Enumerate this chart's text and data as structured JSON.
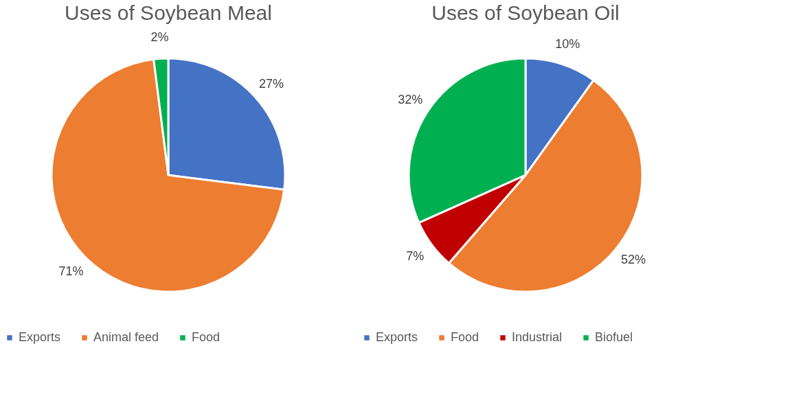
{
  "chart_data": [
    {
      "type": "pie",
      "title": "Uses of Soybean Meal",
      "categories": [
        "Exports",
        "Animal feed",
        "Food"
      ],
      "values": [
        27,
        71,
        2
      ],
      "colors": [
        "#4472c4",
        "#ed7d31",
        "#00b050"
      ],
      "value_labels": [
        "27%",
        "71%",
        "2%"
      ],
      "legend": "bottom"
    },
    {
      "type": "pie",
      "title": "Uses of Soybean Oil",
      "categories": [
        "Exports",
        "Food",
        "Industrial",
        "Biofuel"
      ],
      "values": [
        10,
        52,
        7,
        32
      ],
      "colors": [
        "#4472c4",
        "#ed7d31",
        "#c00000",
        "#00b050"
      ],
      "value_labels": [
        "10%",
        "52%",
        "7%",
        "32%"
      ],
      "legend": "bottom"
    }
  ]
}
